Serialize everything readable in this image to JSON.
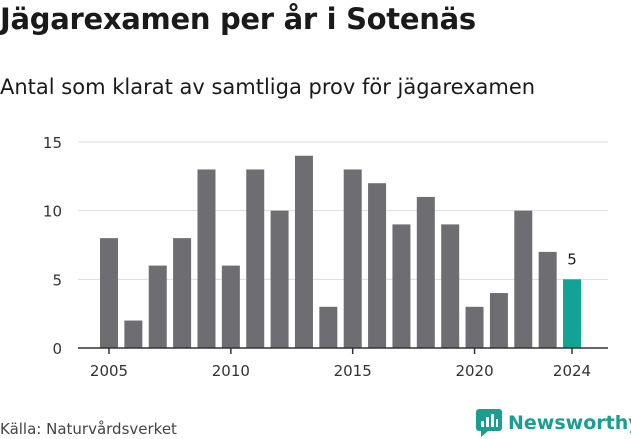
{
  "title": "Jägarexamen per år i Sotenäs",
  "subtitle": "Antal som klarat av samtliga prov för jägarexamen",
  "source": "Källa: Naturvårdsverket",
  "brand": {
    "name": "Newsworthy",
    "color": "#1a9e8f"
  },
  "colors": {
    "bar": "#6e6d72",
    "highlight": "#12a395",
    "grid": "#dddddd",
    "axis": "#333333"
  },
  "chart_data": {
    "type": "bar",
    "title": "Jägarexamen per år i Sotenäs",
    "subtitle": "Antal som klarat av samtliga prov för jägarexamen",
    "xlabel": "",
    "ylabel": "",
    "x": [
      2005,
      2006,
      2007,
      2008,
      2009,
      2010,
      2011,
      2012,
      2013,
      2014,
      2015,
      2016,
      2017,
      2018,
      2019,
      2020,
      2021,
      2022,
      2023,
      2024
    ],
    "values": [
      8,
      2,
      6,
      8,
      13,
      6,
      13,
      10,
      14,
      3,
      13,
      12,
      9,
      11,
      9,
      3,
      4,
      10,
      7,
      5
    ],
    "ylim": [
      0,
      15
    ],
    "yticks": [
      "0",
      "5",
      "10",
      "15"
    ],
    "xticks": [
      "2005",
      "2010",
      "2015",
      "2020",
      "2024"
    ],
    "highlight": {
      "year": 2024,
      "label": "5"
    },
    "grid": true,
    "legend": "none"
  }
}
